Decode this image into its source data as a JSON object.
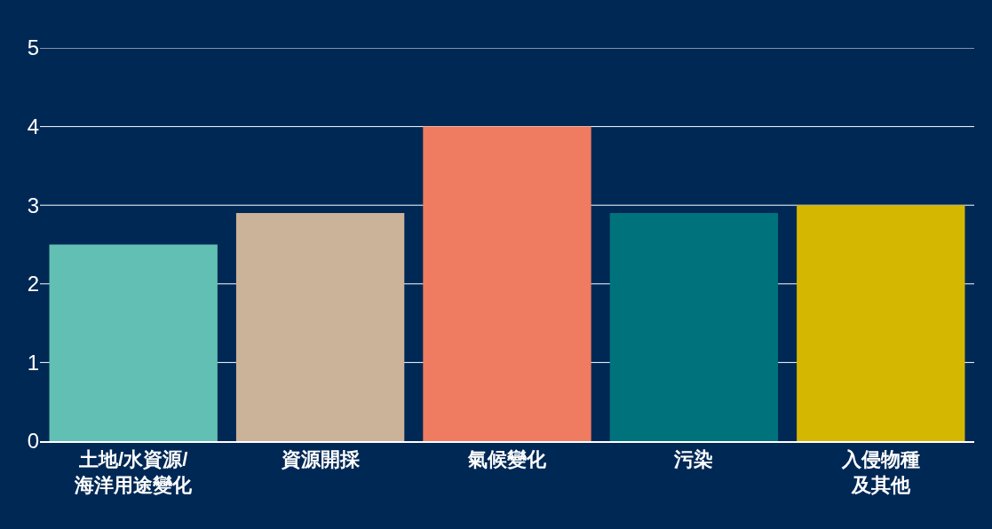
{
  "chart_data": {
    "type": "bar",
    "categories": [
      "土地/水資源/海洋用途變化",
      "資源開採",
      "氣候變化",
      "污染",
      "入侵物種及其他"
    ],
    "values": [
      2.5,
      2.9,
      4,
      2.9,
      3
    ],
    "colors": [
      "#62bfb3",
      "#cbb399",
      "#ef7b61",
      "#00727b",
      "#d4b700"
    ],
    "ylim": [
      0,
      5
    ],
    "yticks": [
      0,
      1,
      2,
      3,
      4,
      5
    ],
    "grid": "y"
  }
}
